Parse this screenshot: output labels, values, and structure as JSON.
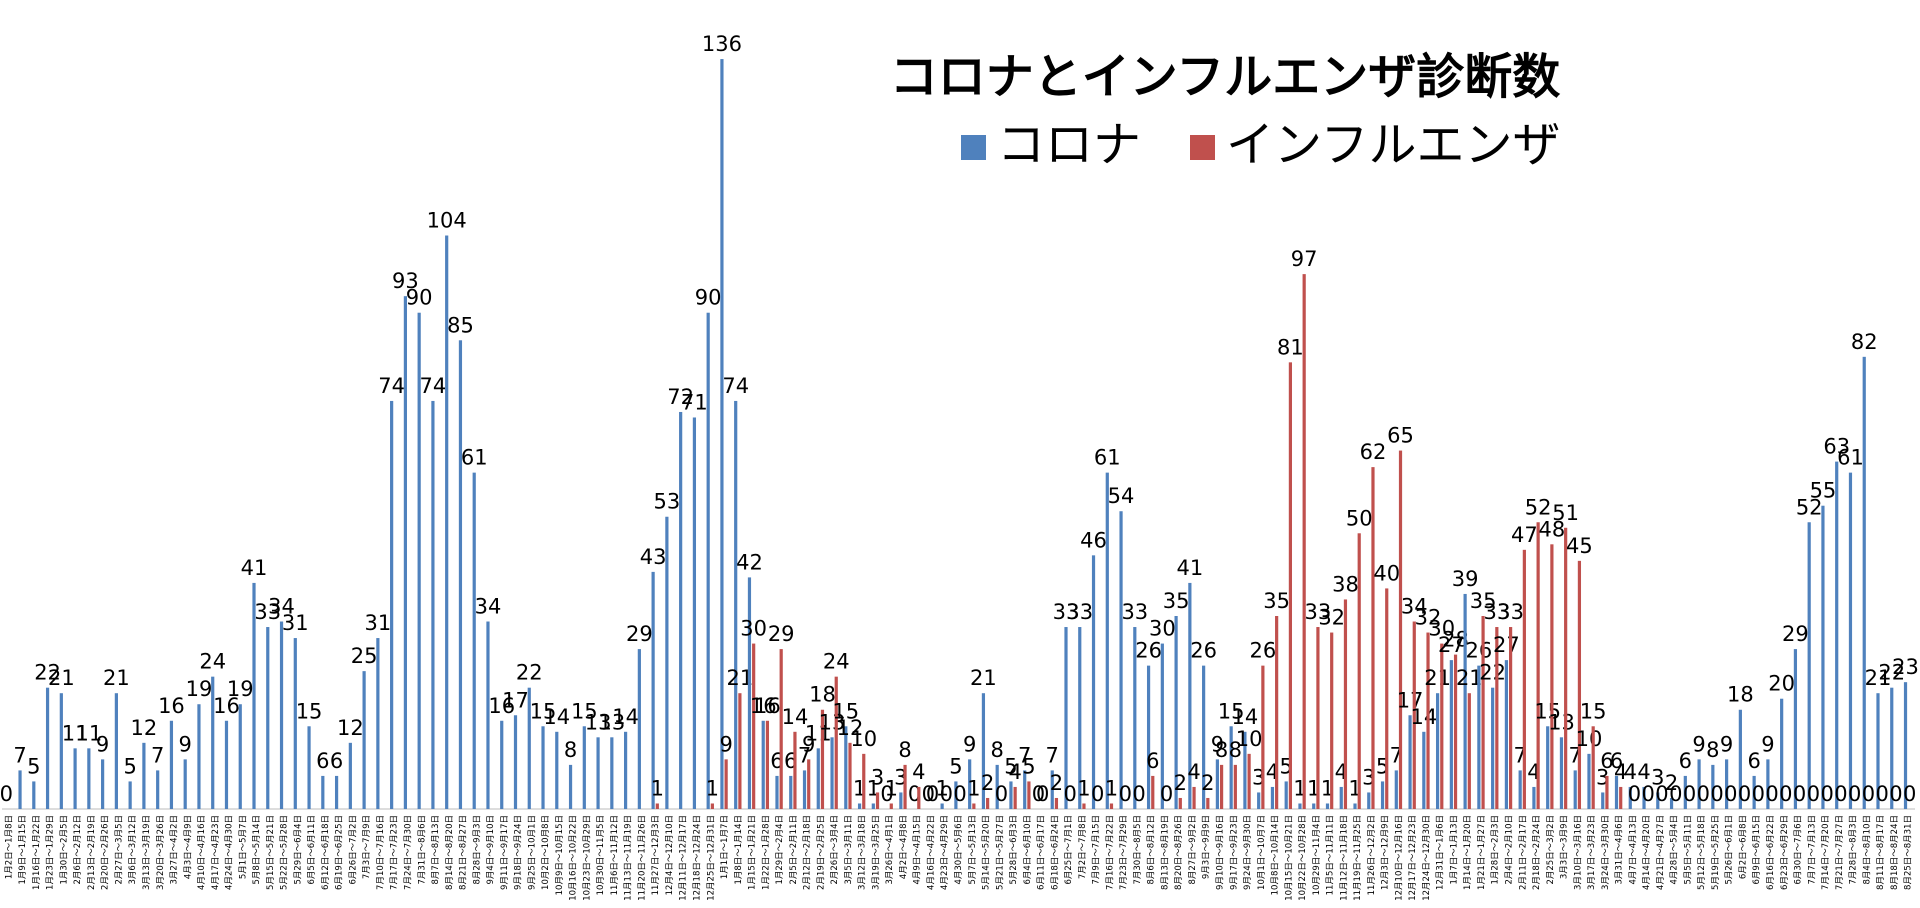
{
  "chart_data": {
    "type": "bar",
    "title": "コロナとインフルエンザ診断数",
    "categories": [
      "1月2日～1月8日",
      "1月9日～1月15日",
      "1月16日～1月22日",
      "1月23日～1月29日",
      "1月30日～2月5日",
      "2月6日～2月12日",
      "2月13日～2月19日",
      "2月20日～2月26日",
      "2月27日～3月5日",
      "3月6日～3月12日",
      "3月13日～3月19日",
      "3月20日～3月26日",
      "3月27日～4月2日",
      "4月3日～4月9日",
      "4月10日～4月16日",
      "4月17日～4月23日",
      "4月24日～4月30日",
      "5月1日～5月7日",
      "5月8日～5月14日",
      "5月15日～5月21日",
      "5月22日～5月28日",
      "5月29日～6月4日",
      "6月5日～6月11日",
      "6月12日～6月18日",
      "6月19日～6月25日",
      "6月26日～7月2日",
      "7月3日～7月9日",
      "7月10日～7月16日",
      "7月17日～7月23日",
      "7月24日～7月30日",
      "7月31日～8月6日",
      "8月7日～8月13日",
      "8月14日～8月20日",
      "8月21日～8月27日",
      "8月28日～9月3日",
      "9月4日～9月10日",
      "9月11日～9月17日",
      "9月18日～9月24日",
      "9月25日～10月1日",
      "10月2日～10月8日",
      "10月9日～10月15日",
      "10月16日～10月22日",
      "10月23日～10月29日",
      "10月30日～11月5日",
      "11月6日～11月12日",
      "11月13日～11月19日",
      "11月20日～11月26日",
      "11月27日～12月3日",
      "12月4日～12月10日",
      "12月11日～12月17日",
      "12月18日～12月24日",
      "12月25日～12月31日",
      "1月1日～1月7日",
      "1月8日～1月14日",
      "1月15日～1月21日",
      "1月22日～1月28日",
      "1月29日～2月4日",
      "2月5日～2月11日",
      "2月12日～2月18日",
      "2月19日～2月25日",
      "2月26日～3月4日",
      "3月5日～3月11日",
      "3月12日～3月18日",
      "3月19日～3月25日",
      "3月26日～4月1日",
      "4月2日～4月8日",
      "4月9日～4月15日",
      "4月16日～4月22日",
      "4月23日～4月29日",
      "4月30日～5月6日",
      "5月7日～5月13日",
      "5月14日～5月20日",
      "5月21日～5月27日",
      "5月28日～6月3日",
      "6月4日～6月10日",
      "6月11日～6月17日",
      "6月18日～6月24日",
      "6月25日～7月1日",
      "7月2日～7月8日",
      "7月9日～7月15日",
      "7月16日～7月22日",
      "7月23日～7月29日",
      "7月30日～8月5日",
      "8月6日～8月12日",
      "8月13日～8月19日",
      "8月20日～8月26日",
      "8月27日～9月2日",
      "9月3日～9月9日",
      "9月10日～9月16日",
      "9月17日～9月23日",
      "9月24日～9月30日",
      "10月1日～10月7日",
      "10月8日～10月14日",
      "10月15日～10月21日",
      "10月22日～10月28日",
      "10月29日～11月4日",
      "11月5日～11月11日",
      "11月12日～11月18日",
      "11月19日～11月25日",
      "11月26日～12月2日",
      "12月3日～12月9日",
      "12月10日～12月16日",
      "12月17日～12月23日",
      "12月24日～12月30日",
      "12月31日～1月6日",
      "1月7日～1月13日",
      "1月14日～1月20日",
      "1月21日～1月27日",
      "1月28日～2月3日",
      "2月4日～2月10日",
      "2月11日～2月17日",
      "2月18日～2月24日",
      "2月25日～3月2日",
      "3月3日～3月9日",
      "3月10日～3月16日",
      "3月17日～3月23日",
      "3月24日～3月30日",
      "3月31日～4月6日",
      "4月7日～4月13日",
      "4月14日～4月20日",
      "4月21日～4月27日",
      "4月28日～5月4日",
      "5月5日～5月11日",
      "5月12日～5月18日",
      "5月19日～5月25日",
      "5月26日～6月1日",
      "6月2日～6月8日",
      "6月9日～6月15日",
      "6月16日～6月22日",
      "6月23日～6月29日",
      "6月30日～7月6日",
      "7月7日～7月13日",
      "7月14日～7月20日",
      "7月21日～7月27日",
      "7月28日～8月3日",
      "8月4日～8月10日",
      "8月11日～8月17日",
      "8月18日～8月24日",
      "8月25日～8月31日"
    ],
    "series": [
      {
        "name": "コロナ",
        "color": "#4f81bd",
        "values": [
          0,
          7,
          5,
          22,
          21,
          11,
          11,
          9,
          21,
          5,
          12,
          7,
          16,
          9,
          19,
          24,
          16,
          19,
          41,
          33,
          34,
          31,
          15,
          6,
          6,
          12,
          25,
          31,
          74,
          93,
          90,
          74,
          104,
          85,
          61,
          34,
          16,
          17,
          22,
          15,
          14,
          8,
          15,
          13,
          13,
          14,
          29,
          43,
          53,
          72,
          71,
          90,
          136,
          74,
          42,
          16,
          6,
          6,
          7,
          11,
          13,
          15,
          1,
          1,
          0,
          3,
          0,
          0,
          1,
          5,
          9,
          21,
          8,
          5,
          7,
          0,
          7,
          33,
          33,
          46,
          61,
          54,
          33,
          26,
          30,
          35,
          41,
          26,
          9,
          15,
          14,
          3,
          4,
          5,
          1,
          1,
          1,
          4,
          1,
          3,
          5,
          7,
          17,
          14,
          21,
          27,
          39,
          26,
          22,
          27,
          7,
          4,
          15,
          13,
          7,
          10,
          3,
          6,
          4,
          4,
          3,
          2,
          6,
          9,
          8,
          9,
          18,
          6,
          9,
          20,
          29,
          52,
          55,
          63,
          61,
          82,
          21,
          22,
          23
        ]
      },
      {
        "name": "インフルエンザ",
        "color": "#c0504d",
        "values": [
          null,
          null,
          null,
          null,
          null,
          null,
          null,
          null,
          null,
          null,
          null,
          null,
          null,
          null,
          null,
          null,
          null,
          null,
          null,
          null,
          null,
          null,
          null,
          null,
          null,
          null,
          null,
          null,
          null,
          null,
          null,
          null,
          null,
          null,
          null,
          null,
          null,
          null,
          null,
          null,
          null,
          null,
          null,
          null,
          null,
          null,
          null,
          1,
          null,
          null,
          null,
          1,
          9,
          21,
          30,
          16,
          29,
          14,
          9,
          18,
          24,
          12,
          10,
          3,
          1,
          8,
          4,
          0,
          0,
          0,
          1,
          2,
          0,
          4,
          5,
          0,
          2,
          0,
          1,
          0,
          1,
          0,
          0,
          6,
          0,
          2,
          4,
          2,
          8,
          8,
          10,
          26,
          35,
          81,
          97,
          33,
          32,
          38,
          50,
          62,
          40,
          65,
          34,
          32,
          30,
          28,
          21,
          35,
          33,
          33,
          47,
          52,
          48,
          51,
          45,
          15,
          6,
          4,
          0,
          0,
          0,
          0,
          0,
          0,
          0,
          0,
          0,
          0,
          0,
          0,
          0,
          0,
          0,
          0,
          0,
          0,
          0,
          0,
          0
        ]
      }
    ],
    "ylim": [
      0,
      140
    ]
  }
}
